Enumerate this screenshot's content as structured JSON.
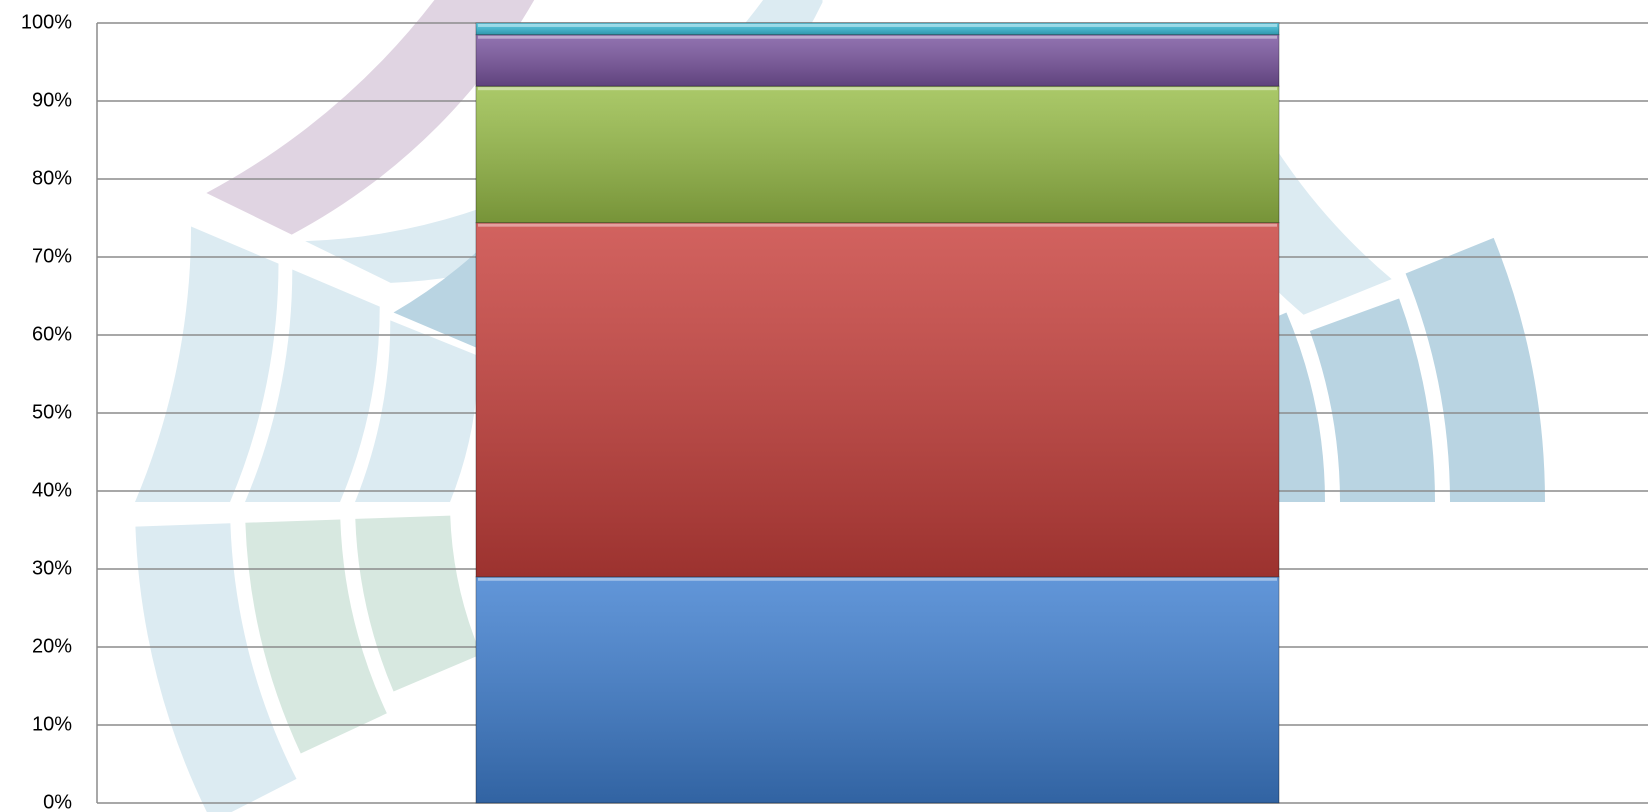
{
  "chart_data": {
    "type": "stacked_bar_100",
    "categories": [
      null
    ],
    "series": [
      {
        "color": "#3f7fd0",
        "values": [
          29
        ]
      },
      {
        "color": "#c8403c",
        "values": [
          45.4
        ]
      },
      {
        "color": "#98bd48",
        "values": [
          17.5
        ]
      },
      {
        "color": "#7a55a0",
        "values": [
          6.6
        ]
      },
      {
        "color": "#3cc0dc",
        "values": [
          1.5
        ]
      }
    ],
    "ylim": [
      0,
      100
    ],
    "yticks": [
      {
        "value": 0,
        "label": "0%"
      },
      {
        "value": 10,
        "label": "10%"
      },
      {
        "value": 20,
        "label": "20%"
      },
      {
        "value": 30,
        "label": "30%"
      },
      {
        "value": 40,
        "label": "40%"
      },
      {
        "value": 50,
        "label": "50%"
      },
      {
        "value": 60,
        "label": "60%"
      },
      {
        "value": 70,
        "label": "70%"
      },
      {
        "value": 80,
        "label": "80%"
      },
      {
        "value": 90,
        "label": "90%"
      },
      {
        "value": 100,
        "label": "100%"
      }
    ],
    "grid": true
  }
}
